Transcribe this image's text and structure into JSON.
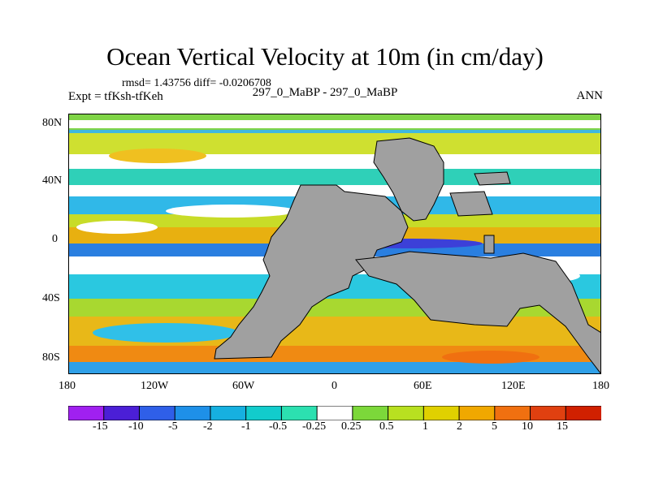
{
  "title": "Ocean Vertical Velocity at 10m (in cm/day)",
  "stats": "rmsd= 1.43756 diff= -0.0206708",
  "experiment": "Expt = tfKsh-tfKeh",
  "comparison": "297_0_MaBP - 297_0_MaBP",
  "season": "ANN",
  "map": {
    "lon_range": [
      -180,
      180
    ],
    "lat_range": [
      -90,
      90
    ],
    "x_ticks": [
      "180",
      "120W",
      "60W",
      "0",
      "60E",
      "120E",
      "180"
    ],
    "y_ticks": [
      "80N",
      "40N",
      "0",
      "40S",
      "80S"
    ],
    "land_color": "#a0a0a0",
    "land_name": "continents (masked land)"
  },
  "colorbar": {
    "labels": [
      "-15",
      "-10",
      "-5",
      "-2",
      "-1",
      "-0.5",
      "-0.25",
      "0.25",
      "0.5",
      "1",
      "2",
      "5",
      "10",
      "15"
    ],
    "colors": [
      "#a020f0",
      "#4b1fd6",
      "#2f5fe8",
      "#1e90e8",
      "#16b0e0",
      "#12cccc",
      "#2ce0b0",
      "#ffffff",
      "#7cd83a",
      "#b8e020",
      "#e0d000",
      "#f0a800",
      "#f07010",
      "#e04010",
      "#d02000"
    ]
  }
}
